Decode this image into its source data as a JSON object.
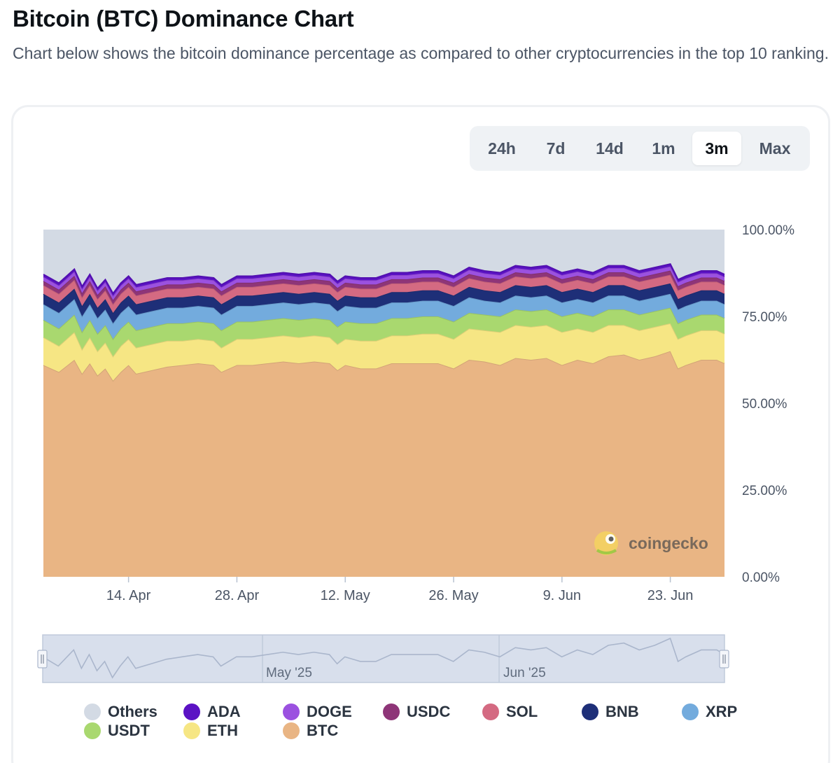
{
  "page": {
    "title": "Bitcoin (BTC) Dominance Chart",
    "description": "Chart below shows the bitcoin dominance percentage as compared to other cryptocurrencies in the top 10 ranking."
  },
  "range_tabs": [
    {
      "label": "24h",
      "active": false
    },
    {
      "label": "7d",
      "active": false
    },
    {
      "label": "14d",
      "active": false
    },
    {
      "label": "1m",
      "active": false
    },
    {
      "label": "3m",
      "active": true
    },
    {
      "label": "Max",
      "active": false
    }
  ],
  "watermark": "coingecko",
  "navigator": {
    "labels": [
      "May '25",
      "Jun '25"
    ],
    "handle_left_icon": "grip-icon",
    "handle_right_icon": "grip-icon"
  },
  "legend": [
    {
      "name": "Others",
      "color": "#d3dae4"
    },
    {
      "name": "ADA",
      "color": "#5b12c4"
    },
    {
      "name": "DOGE",
      "color": "#9b51e0"
    },
    {
      "name": "USDC",
      "color": "#8e3578"
    },
    {
      "name": "SOL",
      "color": "#d46a82"
    },
    {
      "name": "BNB",
      "color": "#1e2f78"
    },
    {
      "name": "XRP",
      "color": "#73abdd"
    },
    {
      "name": "USDT",
      "color": "#a9d86f"
    },
    {
      "name": "ETH",
      "color": "#f6e684"
    },
    {
      "name": "BTC",
      "color": "#e9b584"
    }
  ],
  "chart_data": {
    "type": "area",
    "stacked": true,
    "title": "",
    "xlabel": "",
    "ylabel": "",
    "ylim": [
      0,
      100
    ],
    "y_tick_labels": [
      "100.00%",
      "75.00%",
      "50.00%",
      "25.00%",
      "0.00%"
    ],
    "y_ticks": [
      100,
      75,
      50,
      25,
      0
    ],
    "x_tick_labels": [
      "14. Apr",
      "28. Apr",
      "12. May",
      "26. May",
      "9. Jun",
      "23. Jun"
    ],
    "x_tick_days": [
      14,
      28,
      42,
      56,
      70,
      84
    ],
    "x_domain_days": [
      3,
      91
    ],
    "x": [
      3,
      5,
      7,
      8,
      9,
      10,
      11,
      12,
      13,
      14,
      15,
      17,
      19,
      21,
      23,
      25,
      26,
      28,
      30,
      32,
      34,
      36,
      38,
      40,
      41,
      42,
      44,
      46,
      48,
      50,
      52,
      54,
      56,
      58,
      60,
      62,
      64,
      66,
      68,
      70,
      72,
      74,
      76,
      78,
      80,
      82,
      84,
      85,
      86,
      88,
      90,
      91
    ],
    "series": [
      {
        "name": "BTC",
        "color": "#e9b584",
        "values": [
          61.0,
          59.0,
          62.5,
          58.5,
          61.5,
          58.0,
          60.0,
          56.5,
          59.0,
          61.0,
          58.5,
          59.5,
          60.5,
          61.0,
          61.5,
          61.0,
          59.0,
          61.0,
          61.0,
          61.5,
          62.0,
          61.5,
          62.0,
          61.5,
          59.5,
          61.0,
          60.0,
          60.0,
          61.5,
          61.5,
          61.5,
          61.5,
          60.0,
          62.5,
          62.0,
          61.0,
          63.0,
          62.5,
          63.0,
          61.0,
          62.5,
          61.5,
          63.5,
          64.0,
          62.5,
          63.5,
          65.0,
          60.0,
          61.0,
          62.5,
          62.5,
          61.5
        ]
      },
      {
        "name": "ETH",
        "color": "#f6e684",
        "values": [
          8.0,
          7.5,
          8.0,
          7.0,
          7.5,
          7.0,
          7.5,
          7.0,
          7.5,
          7.5,
          7.5,
          7.5,
          7.5,
          7.0,
          7.0,
          7.0,
          7.0,
          7.5,
          7.5,
          7.5,
          7.5,
          7.5,
          7.5,
          7.5,
          7.5,
          7.5,
          8.0,
          8.0,
          8.0,
          8.0,
          8.5,
          8.5,
          8.5,
          9.0,
          9.0,
          9.5,
          9.5,
          9.5,
          9.5,
          9.5,
          9.0,
          9.0,
          9.0,
          8.5,
          8.5,
          8.5,
          8.0,
          8.5,
          8.5,
          8.5,
          8.5,
          8.5
        ]
      },
      {
        "name": "USDT",
        "color": "#a9d86f",
        "values": [
          5.0,
          5.0,
          5.0,
          5.0,
          5.0,
          5.0,
          5.0,
          5.0,
          5.0,
          5.0,
          5.0,
          5.0,
          5.0,
          5.0,
          5.0,
          5.0,
          5.0,
          5.0,
          5.0,
          5.0,
          5.0,
          5.0,
          5.0,
          5.0,
          5.0,
          5.0,
          5.0,
          5.0,
          5.0,
          5.0,
          5.0,
          5.0,
          5.0,
          4.5,
          4.5,
          4.5,
          4.5,
          4.5,
          4.5,
          4.5,
          4.5,
          4.5,
          4.5,
          4.5,
          4.5,
          4.5,
          4.5,
          4.5,
          4.5,
          4.5,
          4.5,
          4.5
        ]
      },
      {
        "name": "XRP",
        "color": "#73abdd",
        "values": [
          4.5,
          4.5,
          4.5,
          4.5,
          4.5,
          4.5,
          4.5,
          4.5,
          4.5,
          4.5,
          4.5,
          4.5,
          4.5,
          4.5,
          4.5,
          4.5,
          4.5,
          4.5,
          4.5,
          4.5,
          4.5,
          4.5,
          4.5,
          4.5,
          4.5,
          4.5,
          4.5,
          4.5,
          4.5,
          4.5,
          4.5,
          4.5,
          4.5,
          4.5,
          4.0,
          4.0,
          4.0,
          4.0,
          4.0,
          4.0,
          4.0,
          4.0,
          4.0,
          4.0,
          4.0,
          4.0,
          4.0,
          4.0,
          4.0,
          4.0,
          4.0,
          4.0
        ]
      },
      {
        "name": "BNB",
        "color": "#1e2f78",
        "values": [
          3.0,
          3.0,
          3.0,
          3.0,
          3.0,
          3.0,
          3.0,
          3.0,
          3.0,
          3.0,
          3.0,
          3.0,
          3.0,
          3.0,
          3.0,
          3.0,
          3.0,
          3.0,
          3.0,
          3.0,
          3.0,
          3.0,
          3.0,
          3.0,
          3.0,
          3.0,
          3.0,
          3.0,
          3.0,
          3.0,
          3.0,
          3.0,
          3.0,
          3.0,
          3.0,
          3.0,
          3.0,
          3.0,
          3.0,
          3.0,
          3.0,
          3.0,
          3.0,
          3.0,
          3.0,
          3.0,
          3.0,
          3.0,
          3.0,
          3.0,
          3.0,
          3.0
        ]
      },
      {
        "name": "SOL",
        "color": "#d46a82",
        "values": [
          2.5,
          2.5,
          2.5,
          2.5,
          2.5,
          2.5,
          2.5,
          2.5,
          2.5,
          2.5,
          2.5,
          2.5,
          2.5,
          2.5,
          2.5,
          2.5,
          2.5,
          2.5,
          2.5,
          2.5,
          2.5,
          2.5,
          2.5,
          2.5,
          2.5,
          2.5,
          2.5,
          2.5,
          2.5,
          2.5,
          2.5,
          2.5,
          2.5,
          2.5,
          2.5,
          2.5,
          2.5,
          2.5,
          2.5,
          2.5,
          2.5,
          2.5,
          2.5,
          2.5,
          2.5,
          2.5,
          2.5,
          2.5,
          2.5,
          2.5,
          2.5,
          2.5
        ]
      },
      {
        "name": "USDC",
        "color": "#8e3578",
        "values": [
          1.2,
          1.2,
          1.2,
          1.2,
          1.2,
          1.2,
          1.2,
          1.2,
          1.2,
          1.2,
          1.2,
          1.2,
          1.2,
          1.2,
          1.2,
          1.2,
          1.2,
          1.2,
          1.2,
          1.2,
          1.2,
          1.2,
          1.2,
          1.2,
          1.2,
          1.2,
          1.2,
          1.2,
          1.2,
          1.2,
          1.2,
          1.2,
          1.2,
          1.2,
          1.2,
          1.2,
          1.2,
          1.2,
          1.2,
          1.2,
          1.2,
          1.2,
          1.2,
          1.2,
          1.2,
          1.2,
          1.2,
          1.2,
          1.2,
          1.2,
          1.2,
          1.2
        ]
      },
      {
        "name": "DOGE",
        "color": "#9b51e0",
        "values": [
          1.2,
          1.2,
          1.2,
          1.2,
          1.2,
          1.2,
          1.2,
          1.2,
          1.2,
          1.2,
          1.2,
          1.2,
          1.2,
          1.2,
          1.2,
          1.2,
          1.2,
          1.2,
          1.2,
          1.2,
          1.2,
          1.2,
          1.2,
          1.2,
          1.2,
          1.2,
          1.2,
          1.2,
          1.2,
          1.2,
          1.2,
          1.2,
          1.2,
          1.2,
          1.2,
          1.2,
          1.2,
          1.2,
          1.2,
          1.2,
          1.2,
          1.2,
          1.2,
          1.2,
          1.2,
          1.2,
          1.2,
          1.2,
          1.2,
          1.2,
          1.2,
          1.2
        ]
      },
      {
        "name": "ADA",
        "color": "#5b12c4",
        "values": [
          0.7,
          0.7,
          0.7,
          0.7,
          0.7,
          0.7,
          0.7,
          0.7,
          0.7,
          0.7,
          0.7,
          0.7,
          0.7,
          0.7,
          0.7,
          0.7,
          0.7,
          0.7,
          0.7,
          0.7,
          0.7,
          0.7,
          0.7,
          0.7,
          0.7,
          0.7,
          0.7,
          0.7,
          0.7,
          0.7,
          0.7,
          0.7,
          0.7,
          0.7,
          0.7,
          0.7,
          0.7,
          0.7,
          0.7,
          0.7,
          0.7,
          0.7,
          0.7,
          0.7,
          0.7,
          0.7,
          0.7,
          0.7,
          0.7,
          0.7,
          0.7,
          0.7
        ]
      }
    ],
    "others_note": "Others fills remainder to 100%"
  }
}
